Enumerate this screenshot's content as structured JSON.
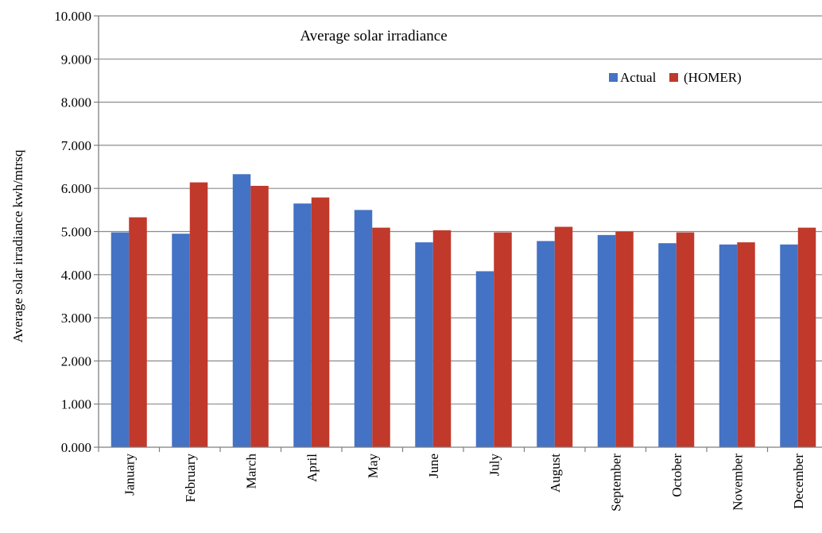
{
  "chart_data": {
    "type": "bar",
    "title": "Average solar irradiance",
    "ylabel": "Average solar irradiance kwh/mtrsq",
    "xlabel": "",
    "ylim": [
      0,
      10
    ],
    "y_ticks": [
      "0.000",
      "1.000",
      "2.000",
      "3.000",
      "4.000",
      "5.000",
      "6.000",
      "7.000",
      "8.000",
      "9.000",
      "10.000"
    ],
    "categories": [
      "January",
      "February",
      "March",
      "April",
      "May",
      "June",
      "July",
      "August",
      "September",
      "October",
      "November",
      "December"
    ],
    "series": [
      {
        "name": "Actual",
        "color": "#4472C4",
        "values": [
          4.98,
          4.95,
          6.33,
          5.65,
          5.5,
          4.75,
          4.08,
          4.78,
          4.92,
          4.73,
          4.7,
          4.7
        ]
      },
      {
        "name": "(HOMER)",
        "color": "#C0392B",
        "values": [
          5.33,
          6.14,
          6.06,
          5.79,
          5.09,
          5.03,
          4.98,
          5.11,
          5.0,
          4.98,
          4.75,
          5.09
        ]
      }
    ],
    "grid": true,
    "legend_position": "top-right"
  }
}
